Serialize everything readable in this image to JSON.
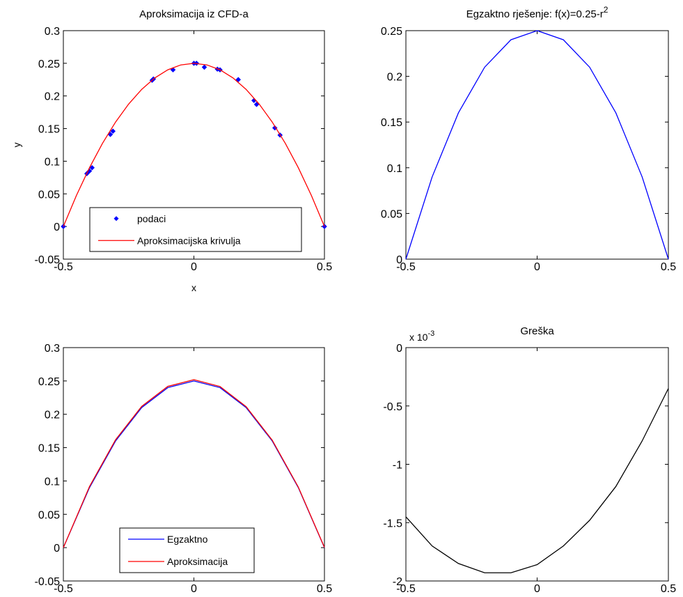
{
  "chart_data": [
    {
      "type": "scatter",
      "title": "Aproksimacija iz CFD-a",
      "xlabel": "x",
      "ylabel": "y",
      "xlim": [
        -0.5,
        0.5
      ],
      "ylim": [
        -0.05,
        0.3
      ],
      "xticks": [
        -0.5,
        0,
        0.5
      ],
      "xtick_labels": [
        "-0.5",
        "0",
        "0.5"
      ],
      "yticks": [
        -0.05,
        0,
        0.05,
        0.1,
        0.15,
        0.2,
        0.25,
        0.3
      ],
      "ytick_labels": [
        "-0.05",
        "0",
        "0.05",
        "0.1",
        "0.15",
        "0.2",
        "0.25",
        "0.3"
      ],
      "grid": false,
      "legend_position": "bottom-center",
      "series": [
        {
          "name": "podaci",
          "kind": "markers",
          "color": "#0000ff",
          "points": [
            [
              -0.5,
              0.0
            ],
            [
              -0.41,
              0.081
            ],
            [
              -0.4,
              0.085
            ],
            [
              -0.39,
              0.09
            ],
            [
              -0.32,
              0.141
            ],
            [
              -0.31,
              0.146
            ],
            [
              -0.16,
              0.224
            ],
            [
              -0.155,
              0.226
            ],
            [
              -0.08,
              0.24
            ],
            [
              0.0,
              0.25
            ],
            [
              0.01,
              0.25
            ],
            [
              0.04,
              0.244
            ],
            [
              0.09,
              0.241
            ],
            [
              0.1,
              0.24
            ],
            [
              0.17,
              0.225
            ],
            [
              0.23,
              0.193
            ],
            [
              0.24,
              0.187
            ],
            [
              0.31,
              0.151
            ],
            [
              0.33,
              0.14
            ],
            [
              0.5,
              0.0
            ]
          ]
        },
        {
          "name": "Aproksimacijska krivulja",
          "kind": "line",
          "color": "#ff0000",
          "x": [
            -0.5,
            -0.45,
            -0.4,
            -0.35,
            -0.3,
            -0.25,
            -0.2,
            -0.15,
            -0.1,
            -0.05,
            0.0,
            0.05,
            0.1,
            0.15,
            0.2,
            0.25,
            0.3,
            0.35,
            0.4,
            0.45,
            0.5
          ],
          "y": [
            0.0,
            0.0475,
            0.09,
            0.1275,
            0.16,
            0.1875,
            0.21,
            0.2275,
            0.24,
            0.2475,
            0.25,
            0.2475,
            0.24,
            0.2275,
            0.21,
            0.1875,
            0.16,
            0.1275,
            0.09,
            0.0475,
            0.0
          ]
        }
      ]
    },
    {
      "type": "line",
      "title": "Egzaktno rješenje: f(x)=0.25-r",
      "title_superscript": "2",
      "xlim": [
        -0.5,
        0.5
      ],
      "ylim": [
        0,
        0.25
      ],
      "xticks": [
        -0.5,
        0,
        0.5
      ],
      "xtick_labels": [
        "-0.5",
        "0",
        "0.5"
      ],
      "yticks": [
        0,
        0.05,
        0.1,
        0.15,
        0.2,
        0.25
      ],
      "ytick_labels": [
        "0",
        "0.05",
        "0.1",
        "0.15",
        "0.2",
        "0.25"
      ],
      "grid": false,
      "series": [
        {
          "kind": "line",
          "color": "#0000ff",
          "x": [
            -0.5,
            -0.4,
            -0.3,
            -0.2,
            -0.1,
            0.0,
            0.1,
            0.2,
            0.3,
            0.4,
            0.5
          ],
          "y": [
            0.0,
            0.09,
            0.16,
            0.21,
            0.24,
            0.25,
            0.24,
            0.21,
            0.16,
            0.09,
            0.0
          ]
        }
      ]
    },
    {
      "type": "line",
      "title": "",
      "xlim": [
        -0.5,
        0.5
      ],
      "ylim": [
        -0.05,
        0.3
      ],
      "xticks": [
        -0.5,
        0,
        0.5
      ],
      "xtick_labels": [
        "-0.5",
        "0",
        "0.5"
      ],
      "yticks": [
        -0.05,
        0,
        0.05,
        0.1,
        0.15,
        0.2,
        0.25,
        0.3
      ],
      "ytick_labels": [
        "-0.05",
        "0",
        "0.05",
        "0.1",
        "0.15",
        "0.2",
        "0.25",
        "0.3"
      ],
      "grid": false,
      "legend_position": "bottom-center",
      "series": [
        {
          "name": "Egzaktno",
          "kind": "line",
          "color": "#0000ff",
          "x": [
            -0.5,
            -0.4,
            -0.3,
            -0.2,
            -0.1,
            0.0,
            0.1,
            0.2,
            0.3,
            0.4,
            0.5
          ],
          "y": [
            0.0,
            0.09,
            0.16,
            0.21,
            0.24,
            0.25,
            0.24,
            0.21,
            0.16,
            0.09,
            0.0
          ]
        },
        {
          "name": "Aproksimacija",
          "kind": "line",
          "color": "#ff0000",
          "x": [
            -0.5,
            -0.4,
            -0.3,
            -0.2,
            -0.1,
            0.0,
            0.1,
            0.2,
            0.3,
            0.4,
            0.5
          ],
          "y": [
            0.0,
            0.0915,
            0.1618,
            0.2119,
            0.2419,
            0.2519,
            0.2417,
            0.2115,
            0.1612,
            0.0908,
            0.0004
          ]
        }
      ]
    },
    {
      "type": "line",
      "title": "Greška",
      "exponent_label": "x 10",
      "exponent_power": "-3",
      "xlim": [
        -0.5,
        0.5
      ],
      "ylim": [
        -2,
        0
      ],
      "xticks": [
        -0.5,
        0,
        0.5
      ],
      "xtick_labels": [
        "-0.5",
        "0",
        "0.5"
      ],
      "yticks": [
        -2,
        -1.5,
        -1,
        -0.5,
        0
      ],
      "ytick_labels": [
        "-2",
        "-1.5",
        "-1",
        "-0.5",
        "0"
      ],
      "grid": false,
      "series": [
        {
          "kind": "line",
          "color": "#000000",
          "x": [
            -0.5,
            -0.4,
            -0.3,
            -0.2,
            -0.1,
            0.0,
            0.1,
            0.2,
            0.3,
            0.4,
            0.5
          ],
          "y": [
            -1.45,
            -1.7,
            -1.85,
            -1.93,
            -1.93,
            -1.86,
            -1.7,
            -1.48,
            -1.19,
            -0.8,
            -0.35
          ]
        }
      ]
    }
  ]
}
